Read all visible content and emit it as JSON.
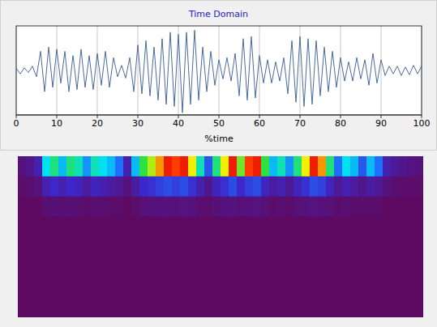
{
  "chart_data": [
    {
      "type": "line",
      "title": "Time Domain",
      "xlabel": "%time",
      "xlim": [
        0,
        100
      ],
      "xticks": [
        0,
        10,
        20,
        30,
        40,
        50,
        60,
        70,
        80,
        90,
        100
      ],
      "ylim": [
        -1.05,
        1.05
      ],
      "tick_labels": "x",
      "grid": true,
      "color": "#4a6b9c",
      "x": [
        0,
        1,
        2,
        3,
        4,
        5,
        6,
        7,
        8,
        9,
        10,
        11,
        12,
        13,
        14,
        15,
        16,
        17,
        18,
        19,
        20,
        21,
        22,
        23,
        24,
        25,
        26,
        27,
        28,
        29,
        30,
        31,
        32,
        33,
        34,
        35,
        36,
        37,
        38,
        39,
        40,
        41,
        42,
        43,
        44,
        45,
        46,
        47,
        48,
        49,
        50,
        51,
        52,
        53,
        54,
        55,
        56,
        57,
        58,
        59,
        60,
        61,
        62,
        63,
        64,
        65,
        66,
        67,
        68,
        69,
        70,
        71,
        72,
        73,
        74,
        75,
        76,
        77,
        78,
        79,
        80,
        81,
        82,
        83,
        84,
        85,
        86,
        87,
        88,
        89,
        90,
        91,
        92,
        93,
        94,
        95,
        96,
        97,
        98,
        99,
        100
      ],
      "values": [
        0.05,
        -0.08,
        0.06,
        -0.05,
        0.1,
        -0.15,
        0.45,
        -0.5,
        0.55,
        -0.4,
        0.5,
        -0.3,
        0.45,
        -0.5,
        0.35,
        -0.45,
        0.5,
        -0.4,
        0.35,
        -0.45,
        0.4,
        -0.35,
        0.45,
        -0.4,
        0.3,
        -0.15,
        0.12,
        -0.18,
        0.3,
        -0.5,
        0.6,
        -0.55,
        0.7,
        -0.6,
        0.55,
        -0.7,
        0.75,
        -0.8,
        0.9,
        -0.85,
        0.85,
        -1.0,
        0.9,
        -0.8,
        0.95,
        -0.7,
        0.55,
        -0.5,
        0.45,
        -0.35,
        0.25,
        -0.2,
        0.3,
        -0.25,
        0.4,
        -0.6,
        0.75,
        -0.7,
        0.8,
        -0.65,
        0.35,
        -0.3,
        0.25,
        -0.3,
        0.2,
        -0.25,
        0.3,
        -0.55,
        0.7,
        -0.75,
        0.8,
        -0.85,
        0.75,
        -0.8,
        0.7,
        -0.6,
        0.55,
        -0.5,
        0.45,
        -0.4,
        0.3,
        -0.25,
        0.2,
        -0.25,
        0.3,
        -0.2,
        0.25,
        -0.35,
        0.4,
        -0.3,
        0.25,
        -0.12,
        0.1,
        -0.08,
        0.1,
        -0.12,
        0.08,
        -0.1,
        0.12,
        -0.08,
        0.1
      ]
    },
    {
      "type": "heatmap",
      "tick_labels": false,
      "value_range": [
        0,
        1
      ],
      "cells": [
        [
          0.05,
          0.08,
          0.15,
          0.5,
          0.6,
          0.45,
          0.6,
          0.55,
          0.4,
          0.55,
          0.5,
          0.45,
          0.35,
          0.15,
          0.45,
          0.65,
          0.75,
          0.85,
          0.95,
          0.9,
          0.95,
          0.8,
          0.55,
          0.3,
          0.6,
          0.8,
          0.95,
          0.7,
          0.9,
          0.95,
          0.65,
          0.45,
          0.55,
          0.4,
          0.6,
          0.8,
          0.95,
          0.85,
          0.6,
          0.35,
          0.5,
          0.45,
          0.3,
          0.45,
          0.35,
          0.15,
          0.1,
          0.08,
          0.06,
          0.05
        ],
        [
          0.02,
          0.03,
          0.05,
          0.15,
          0.2,
          0.15,
          0.2,
          0.18,
          0.12,
          0.18,
          0.15,
          0.12,
          0.1,
          0.05,
          0.12,
          0.2,
          0.22,
          0.25,
          0.28,
          0.25,
          0.28,
          0.22,
          0.15,
          0.08,
          0.18,
          0.22,
          0.28,
          0.2,
          0.25,
          0.28,
          0.18,
          0.12,
          0.15,
          0.1,
          0.18,
          0.22,
          0.28,
          0.25,
          0.18,
          0.1,
          0.15,
          0.12,
          0.08,
          0.12,
          0.1,
          0.05,
          0.03,
          0.02,
          0.02,
          0.02
        ],
        [
          0,
          0,
          0,
          0.03,
          0.04,
          0.03,
          0.04,
          0.03,
          0.02,
          0.03,
          0.03,
          0.02,
          0.02,
          0,
          0.02,
          0.04,
          0.05,
          0.05,
          0.06,
          0.05,
          0.06,
          0.05,
          0.03,
          0.02,
          0.04,
          0.05,
          0.06,
          0.04,
          0.05,
          0.06,
          0.04,
          0.02,
          0.03,
          0.02,
          0.04,
          0.05,
          0.06,
          0.05,
          0.04,
          0.02,
          0.03,
          0.02,
          0.02,
          0.02,
          0.02,
          0,
          0,
          0,
          0,
          0
        ],
        [
          0,
          0,
          0,
          0,
          0,
          0,
          0,
          0,
          0,
          0,
          0,
          0,
          0,
          0,
          0,
          0,
          0,
          0,
          0,
          0,
          0,
          0,
          0,
          0,
          0,
          0,
          0,
          0,
          0,
          0,
          0,
          0,
          0,
          0,
          0,
          0,
          0,
          0,
          0,
          0,
          0,
          0,
          0,
          0,
          0,
          0,
          0,
          0,
          0,
          0
        ],
        [
          0,
          0,
          0,
          0,
          0,
          0,
          0,
          0,
          0,
          0,
          0,
          0,
          0,
          0,
          0,
          0,
          0,
          0,
          0,
          0,
          0,
          0,
          0,
          0,
          0,
          0,
          0,
          0,
          0,
          0,
          0,
          0,
          0,
          0,
          0,
          0,
          0,
          0,
          0,
          0,
          0,
          0,
          0,
          0,
          0,
          0,
          0,
          0,
          0,
          0
        ],
        [
          0,
          0,
          0,
          0,
          0,
          0,
          0,
          0,
          0,
          0,
          0,
          0,
          0,
          0,
          0,
          0,
          0,
          0,
          0,
          0,
          0,
          0,
          0,
          0,
          0,
          0,
          0,
          0,
          0,
          0,
          0,
          0,
          0,
          0,
          0,
          0,
          0,
          0,
          0,
          0,
          0,
          0,
          0,
          0,
          0,
          0,
          0,
          0,
          0,
          0
        ],
        [
          0,
          0,
          0,
          0,
          0,
          0,
          0,
          0,
          0,
          0,
          0,
          0,
          0,
          0,
          0,
          0,
          0,
          0,
          0,
          0,
          0,
          0,
          0,
          0,
          0,
          0,
          0,
          0,
          0,
          0,
          0,
          0,
          0,
          0,
          0,
          0,
          0,
          0,
          0,
          0,
          0,
          0,
          0,
          0,
          0,
          0,
          0,
          0,
          0,
          0
        ],
        [
          0,
          0,
          0,
          0,
          0,
          0,
          0,
          0,
          0,
          0,
          0,
          0,
          0,
          0,
          0,
          0,
          0,
          0,
          0,
          0,
          0,
          0,
          0,
          0,
          0,
          0,
          0,
          0,
          0,
          0,
          0,
          0,
          0,
          0,
          0,
          0,
          0,
          0,
          0,
          0,
          0,
          0,
          0,
          0,
          0,
          0,
          0,
          0,
          0,
          0
        ]
      ]
    }
  ]
}
